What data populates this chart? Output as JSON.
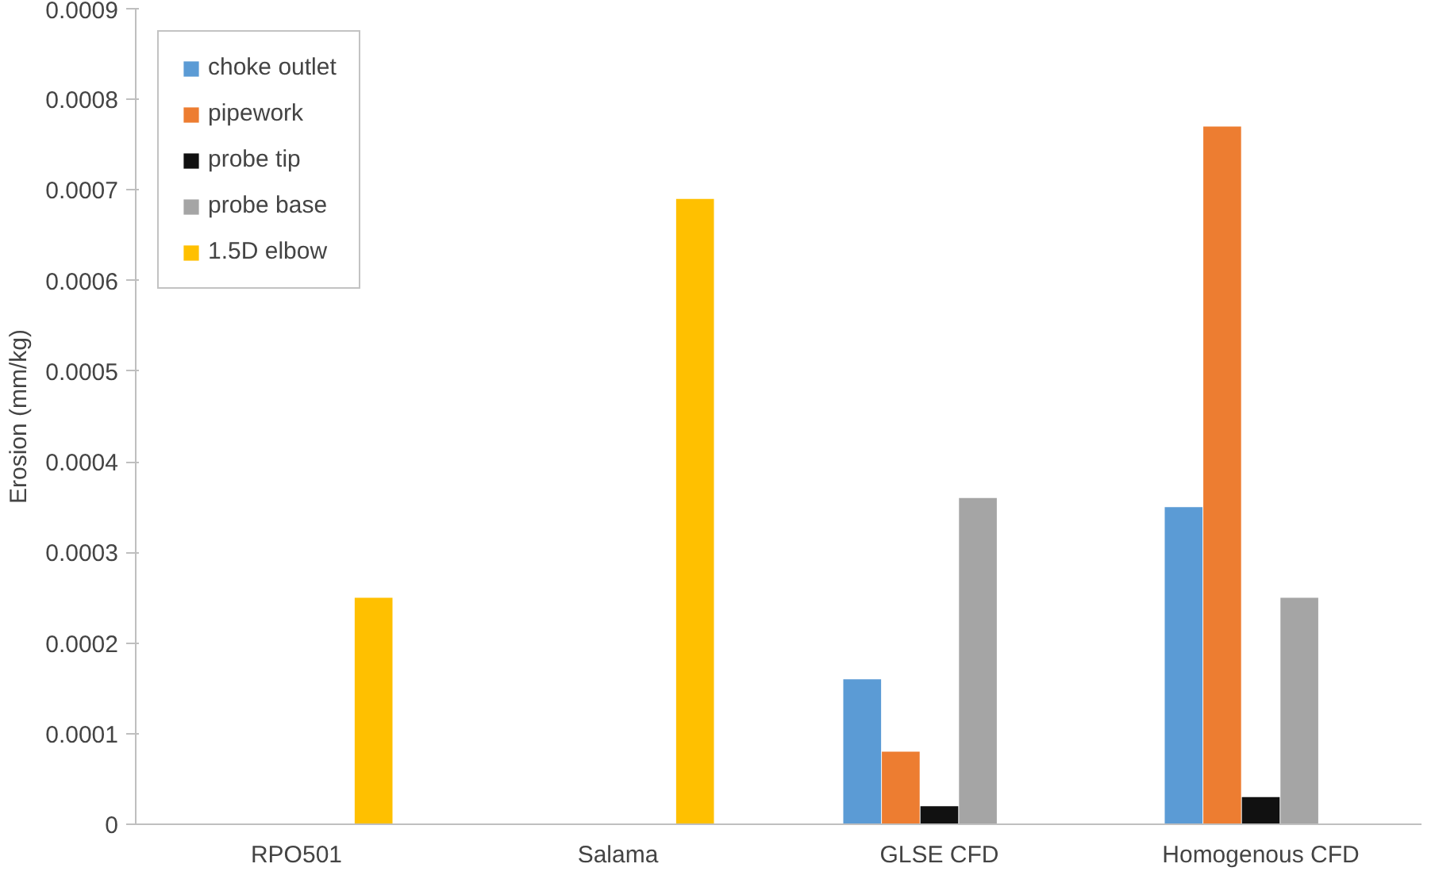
{
  "chart_data": {
    "type": "bar",
    "ylabel": "Erosion (mm/kg)",
    "categories": [
      "RPO501",
      "Salama",
      "GLSE CFD",
      "Homogenous CFD"
    ],
    "series": [
      {
        "name": "choke outlet",
        "color": "#5b9bd5",
        "values": [
          null,
          null,
          0.00016,
          0.00035
        ]
      },
      {
        "name": "pipework",
        "color": "#ed7d31",
        "values": [
          null,
          null,
          8e-05,
          0.00077
        ]
      },
      {
        "name": "probe tip",
        "color": "#111111",
        "values": [
          null,
          null,
          2e-05,
          3e-05
        ]
      },
      {
        "name": "probe base",
        "color": "#a5a5a5",
        "values": [
          null,
          null,
          0.00036,
          0.00025
        ]
      },
      {
        "name": "1.5D elbow",
        "color": "#ffc000",
        "values": [
          0.00025,
          0.00069,
          null,
          null
        ]
      }
    ],
    "ylim": [
      0,
      0.0009
    ],
    "yticks": [
      0,
      0.0001,
      0.0002,
      0.0003,
      0.0004,
      0.0005,
      0.0006,
      0.0007,
      0.0008,
      0.0009
    ],
    "grid": false,
    "legend": "top left"
  }
}
